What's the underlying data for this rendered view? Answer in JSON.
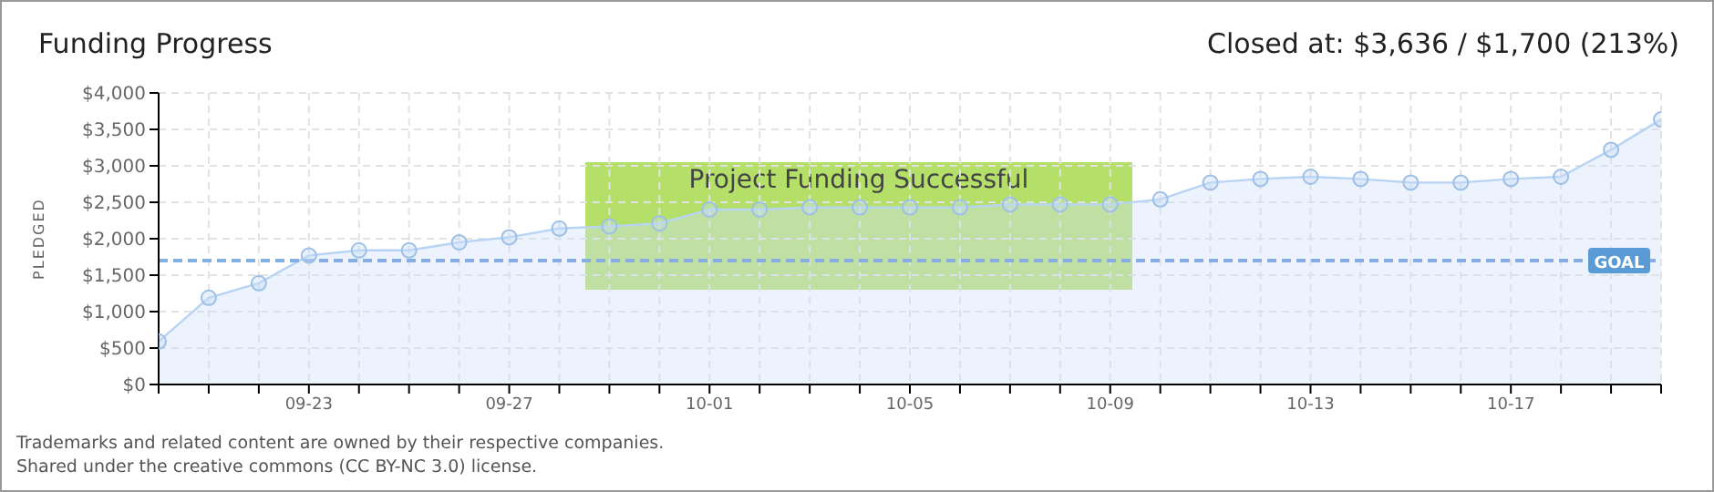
{
  "chart_data": {
    "type": "area",
    "title": "Funding Progress",
    "subtitle": "Closed at:  $3,636 /  $1,700 (213%)",
    "ylabel": "PLEDGED",
    "x": [
      "--09-20",
      "--09-21",
      "--09-22",
      "--09-23",
      "--09-24",
      "--09-25",
      "--09-26",
      "--09-27",
      "--09-28",
      "--09-29",
      "--09-30",
      "--10-01",
      "--10-02",
      "--10-03",
      "--10-04",
      "--10-05",
      "--10-06",
      "--10-07",
      "--10-08",
      "--10-09",
      "--10-10",
      "--10-11",
      "--10-12",
      "--10-13",
      "--10-14",
      "--10-15",
      "--10-16",
      "--10-17",
      "--10-18",
      "--10-19",
      "--10-20"
    ],
    "series": [
      {
        "color": "#b8d4f4",
        "values": [
          590,
          1190,
          1390,
          1770,
          1840,
          1840,
          1950,
          2020,
          2140,
          2170,
          2210,
          2400,
          2400,
          2430,
          2430,
          2430,
          2430,
          2470,
          2470,
          2470,
          2540,
          2770,
          2820,
          2850,
          2820,
          2770,
          2770,
          2820,
          2850,
          3220,
          3636
        ]
      }
    ],
    "xlim": [
      "--09-20",
      "--10-20"
    ],
    "xticks": [
      {
        "value": "--09-20",
        "label": null
      },
      {
        "value": "--09-21",
        "label": null
      },
      {
        "value": "--09-22",
        "label": null
      },
      {
        "value": "--09-23",
        "label": "09-23"
      },
      {
        "value": "--09-24",
        "label": null
      },
      {
        "value": "--09-25",
        "label": null
      },
      {
        "value": "--09-26",
        "label": null
      },
      {
        "value": "--09-27",
        "label": "09-27"
      },
      {
        "value": "--09-28",
        "label": null
      },
      {
        "value": "--09-29",
        "label": null
      },
      {
        "value": "--09-30",
        "label": null
      },
      {
        "value": "--10-01",
        "label": "10-01"
      },
      {
        "value": "--10-02",
        "label": null
      },
      {
        "value": "--10-03",
        "label": null
      },
      {
        "value": "--10-04",
        "label": null
      },
      {
        "value": "--10-05",
        "label": "10-05"
      },
      {
        "value": "--10-06",
        "label": null
      },
      {
        "value": "--10-07",
        "label": null
      },
      {
        "value": "--10-08",
        "label": null
      },
      {
        "value": "--10-09",
        "label": "10-09"
      },
      {
        "value": "--10-10",
        "label": null
      },
      {
        "value": "--10-11",
        "label": null
      },
      {
        "value": "--10-12",
        "label": null
      },
      {
        "value": "--10-13",
        "label": "10-13"
      },
      {
        "value": "--10-14",
        "label": null
      },
      {
        "value": "--10-15",
        "label": null
      },
      {
        "value": "--10-16",
        "label": null
      },
      {
        "value": "--10-17",
        "label": "10-17"
      },
      {
        "value": "--10-18",
        "label": null
      },
      {
        "value": "--10-19",
        "label": null
      },
      {
        "value": "--10-20",
        "label": null
      }
    ],
    "ylim": [
      0,
      4000
    ],
    "yticks": [
      {
        "value": 0,
        "label": "$0"
      },
      {
        "value": 500,
        "label": "$500"
      },
      {
        "value": 1000,
        "label": "$1,000"
      },
      {
        "value": 1500,
        "label": "$1,500"
      },
      {
        "value": 2000,
        "label": "$2,000"
      },
      {
        "value": 2500,
        "label": "$2,500"
      },
      {
        "value": 3000,
        "label": "$3,000"
      },
      {
        "value": 3500,
        "label": "$3,500"
      },
      {
        "value": 4000,
        "label": "$4,000"
      }
    ],
    "ref_lines": [
      {
        "axis": "y",
        "value": 1700,
        "label": "GOAL",
        "color": "#86aee0",
        "line_style": "dashed"
      }
    ],
    "annotations": [
      "Project Funding Successful",
      "Trademarks and related content are owned by their respective companies.",
      "Shared under the creative commons (CC BY-NC 3.0) license."
    ],
    "grid": true,
    "marker": "circle",
    "line_style": "solid"
  }
}
